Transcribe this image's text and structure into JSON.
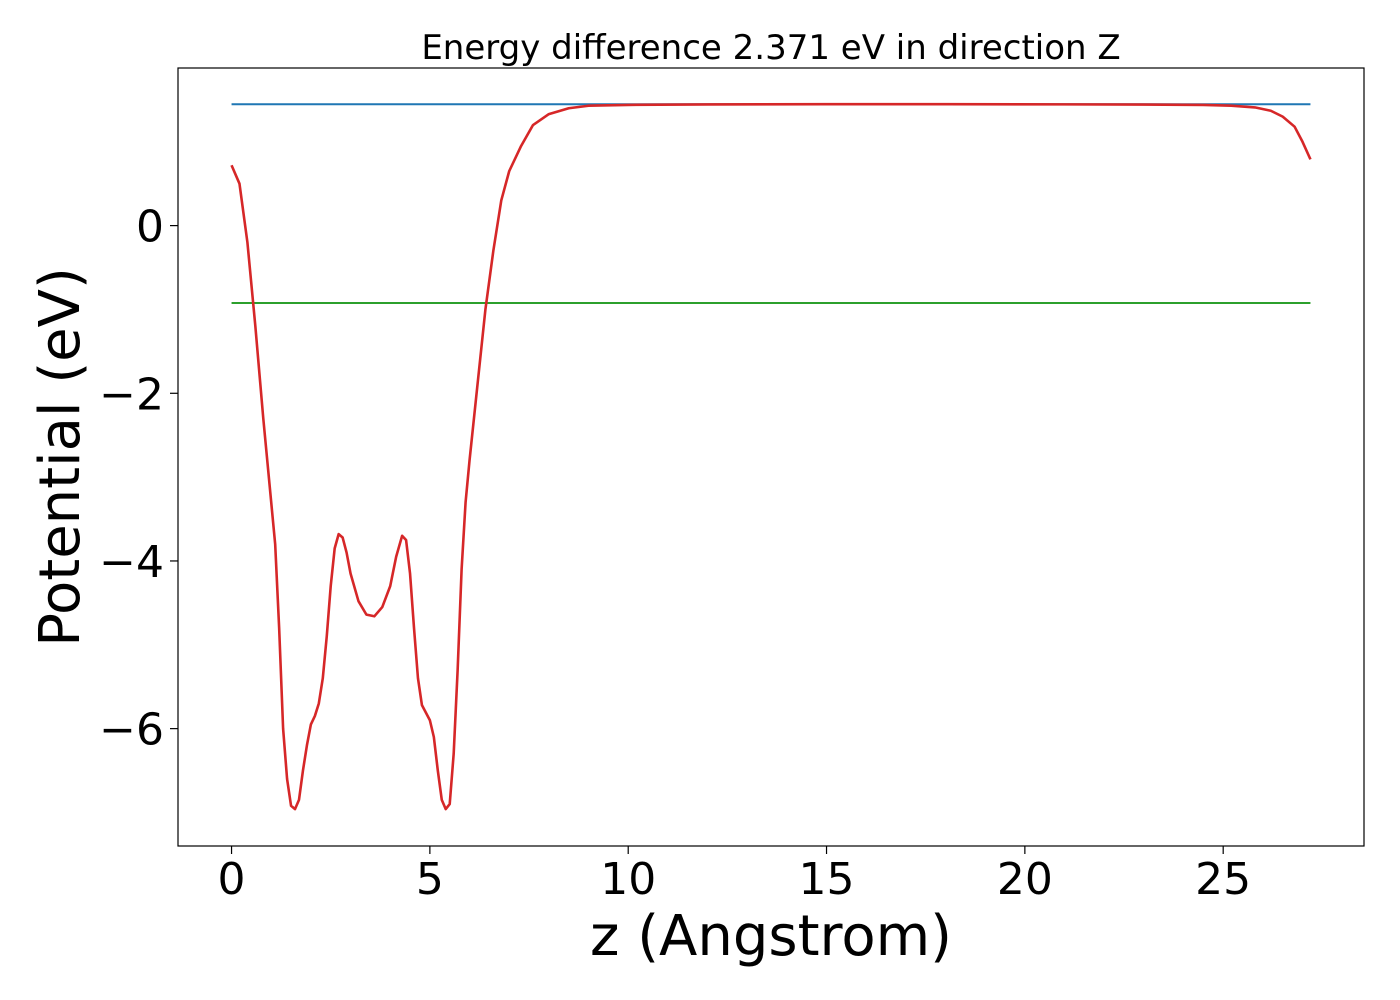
{
  "chart_data": {
    "type": "line",
    "title": "Energy difference 2.371 eV in direction Z",
    "xlabel": "z (Angstrom)",
    "ylabel": "Potential (eV)",
    "xlim": [
      -1.35,
      28.55
    ],
    "ylim": [
      -7.4,
      1.88
    ],
    "xticks": [
      0,
      5,
      10,
      15,
      20,
      25
    ],
    "xtick_labels": [
      "0",
      "5",
      "10",
      "15",
      "20",
      "25"
    ],
    "yticks": [
      0,
      -2,
      -4,
      -6
    ],
    "ytick_labels": [
      "0",
      "−2",
      "−4",
      "−6"
    ],
    "grid": false,
    "series": [
      {
        "color": "#1f77b4",
        "points": [
          [
            0,
            1.448
          ],
          [
            27.2,
            1.448
          ]
        ]
      },
      {
        "color": "#2ca02c",
        "points": [
          [
            0,
            -0.923
          ],
          [
            27.2,
            -0.923
          ]
        ]
      },
      {
        "color": "#d62728",
        "points": [
          [
            0.0,
            0.72
          ],
          [
            0.2,
            0.5
          ],
          [
            0.4,
            -0.2
          ],
          [
            0.6,
            -1.2
          ],
          [
            0.8,
            -2.3
          ],
          [
            1.0,
            -3.3
          ],
          [
            1.1,
            -3.8
          ],
          [
            1.2,
            -4.8
          ],
          [
            1.3,
            -6.0
          ],
          [
            1.4,
            -6.6
          ],
          [
            1.5,
            -6.92
          ],
          [
            1.6,
            -6.96
          ],
          [
            1.7,
            -6.85
          ],
          [
            1.8,
            -6.5
          ],
          [
            1.9,
            -6.2
          ],
          [
            2.0,
            -5.95
          ],
          [
            2.1,
            -5.85
          ],
          [
            2.2,
            -5.7
          ],
          [
            2.3,
            -5.4
          ],
          [
            2.4,
            -4.9
          ],
          [
            2.5,
            -4.3
          ],
          [
            2.6,
            -3.85
          ],
          [
            2.7,
            -3.68
          ],
          [
            2.8,
            -3.72
          ],
          [
            2.9,
            -3.9
          ],
          [
            3.0,
            -4.15
          ],
          [
            3.2,
            -4.48
          ],
          [
            3.4,
            -4.64
          ],
          [
            3.6,
            -4.66
          ],
          [
            3.8,
            -4.55
          ],
          [
            4.0,
            -4.3
          ],
          [
            4.15,
            -3.95
          ],
          [
            4.3,
            -3.7
          ],
          [
            4.4,
            -3.75
          ],
          [
            4.5,
            -4.15
          ],
          [
            4.6,
            -4.8
          ],
          [
            4.7,
            -5.4
          ],
          [
            4.8,
            -5.72
          ],
          [
            5.0,
            -5.9
          ],
          [
            5.1,
            -6.1
          ],
          [
            5.2,
            -6.5
          ],
          [
            5.3,
            -6.85
          ],
          [
            5.4,
            -6.96
          ],
          [
            5.5,
            -6.9
          ],
          [
            5.6,
            -6.3
          ],
          [
            5.7,
            -5.3
          ],
          [
            5.8,
            -4.1
          ],
          [
            5.9,
            -3.3
          ],
          [
            6.0,
            -2.8
          ],
          [
            6.2,
            -1.9
          ],
          [
            6.4,
            -1.0
          ],
          [
            6.6,
            -0.3
          ],
          [
            6.8,
            0.3
          ],
          [
            7.0,
            0.65
          ],
          [
            7.3,
            0.95
          ],
          [
            7.6,
            1.2
          ],
          [
            8.0,
            1.33
          ],
          [
            8.5,
            1.4
          ],
          [
            9.0,
            1.43
          ],
          [
            10.0,
            1.44
          ],
          [
            12.0,
            1.445
          ],
          [
            15.0,
            1.448
          ],
          [
            18.0,
            1.448
          ],
          [
            21.0,
            1.446
          ],
          [
            23.0,
            1.444
          ],
          [
            24.5,
            1.44
          ],
          [
            25.2,
            1.43
          ],
          [
            25.8,
            1.41
          ],
          [
            26.2,
            1.37
          ],
          [
            26.5,
            1.3
          ],
          [
            26.8,
            1.18
          ],
          [
            27.0,
            1.0
          ],
          [
            27.2,
            0.79
          ]
        ]
      }
    ]
  }
}
